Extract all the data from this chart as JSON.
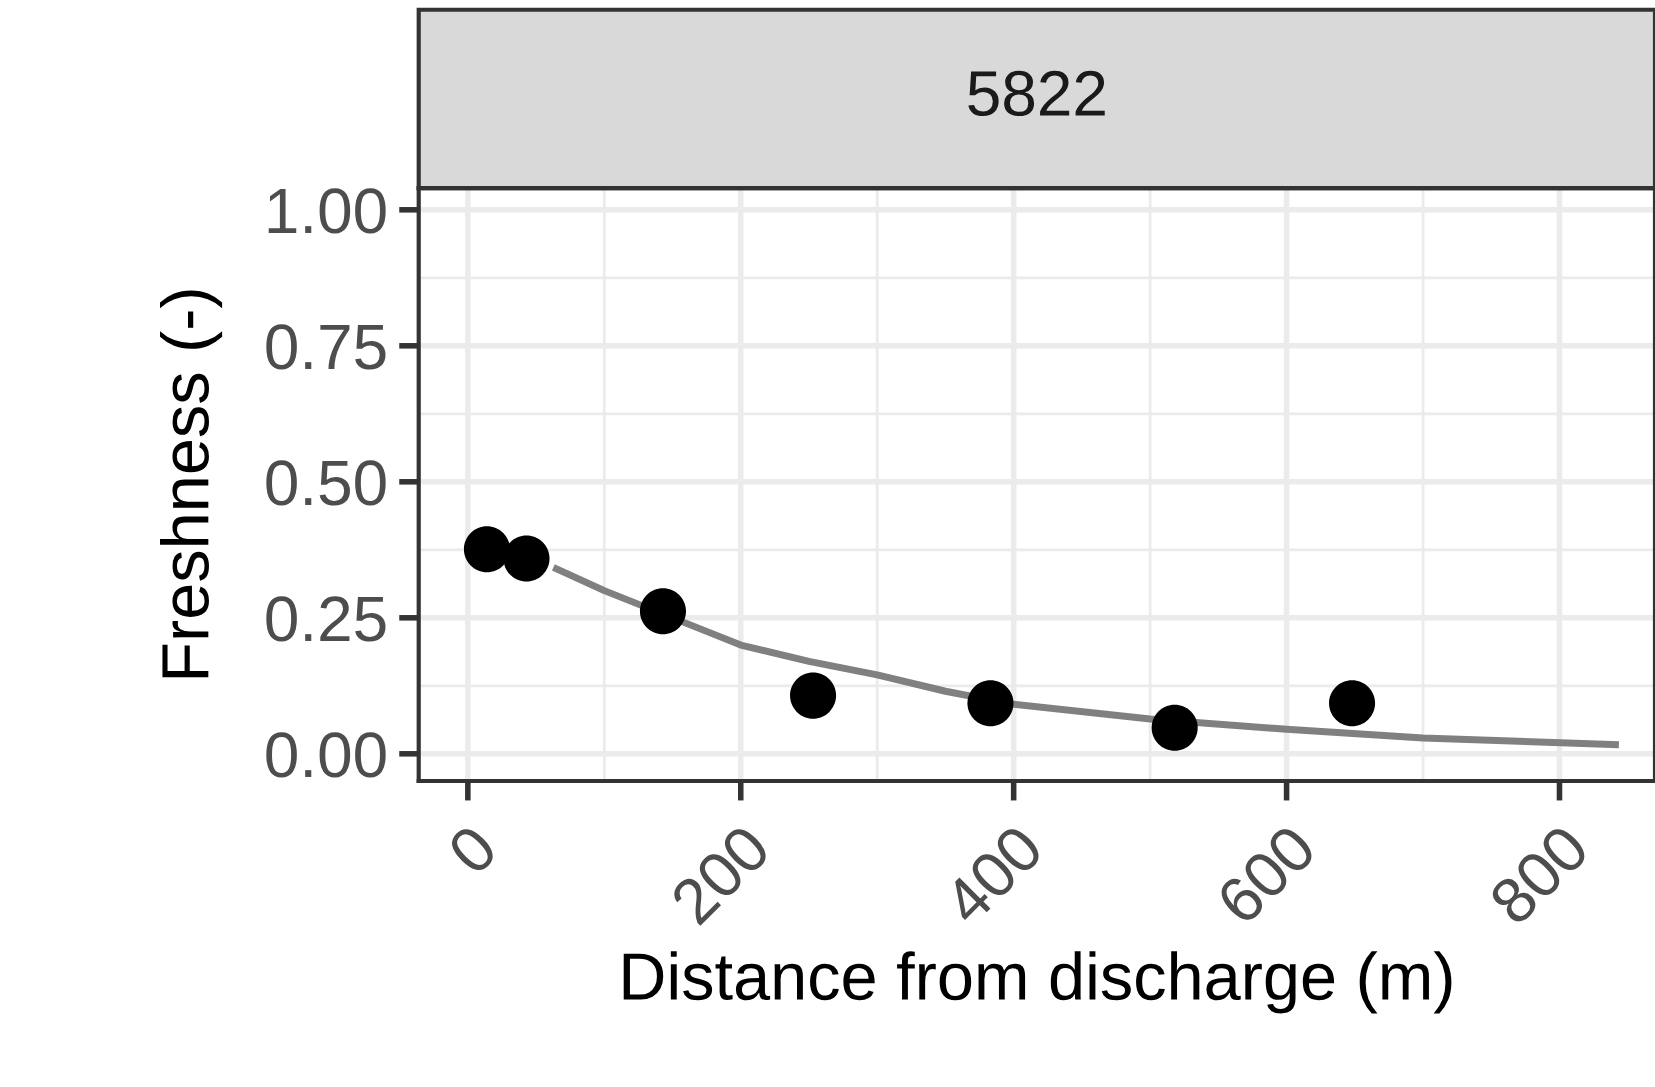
{
  "chart_data": {
    "type": "scatter",
    "title": "5822",
    "xlabel": "Distance from discharge (m)",
    "ylabel": "Freshness (-)",
    "series": [
      {
        "color": "#000000",
        "marker": "circle",
        "x": [
          14,
          43,
          143,
          253,
          383,
          518,
          648
        ],
        "values": [
          0.376,
          0.359,
          0.262,
          0.107,
          0.093,
          0.048,
          0.093
        ]
      },
      {
        "type": "line",
        "color": "#808080",
        "line_style": "solid",
        "x": [
          65,
          100,
          180,
          200,
          250,
          300,
          350,
          400,
          500,
          600,
          700,
          841
        ],
        "values": [
          0.34,
          0.3,
          0.22,
          0.2,
          0.17,
          0.145,
          0.115,
          0.091,
          0.064,
          0.045,
          0.029,
          0.017
        ]
      }
    ],
    "xlim": [
      -36,
      870
    ],
    "ylim": [
      -0.05,
      1.04
    ],
    "xticks": [
      0,
      200,
      400,
      600,
      800
    ],
    "yticks": [
      {
        "value": 0,
        "label": "0.00"
      },
      {
        "value": 0.25,
        "label": "0.25"
      },
      {
        "value": 0.5,
        "label": "0.50"
      },
      {
        "value": 0.75,
        "label": "0.75"
      },
      {
        "value": 1,
        "label": "1.00"
      }
    ],
    "grid": true
  }
}
